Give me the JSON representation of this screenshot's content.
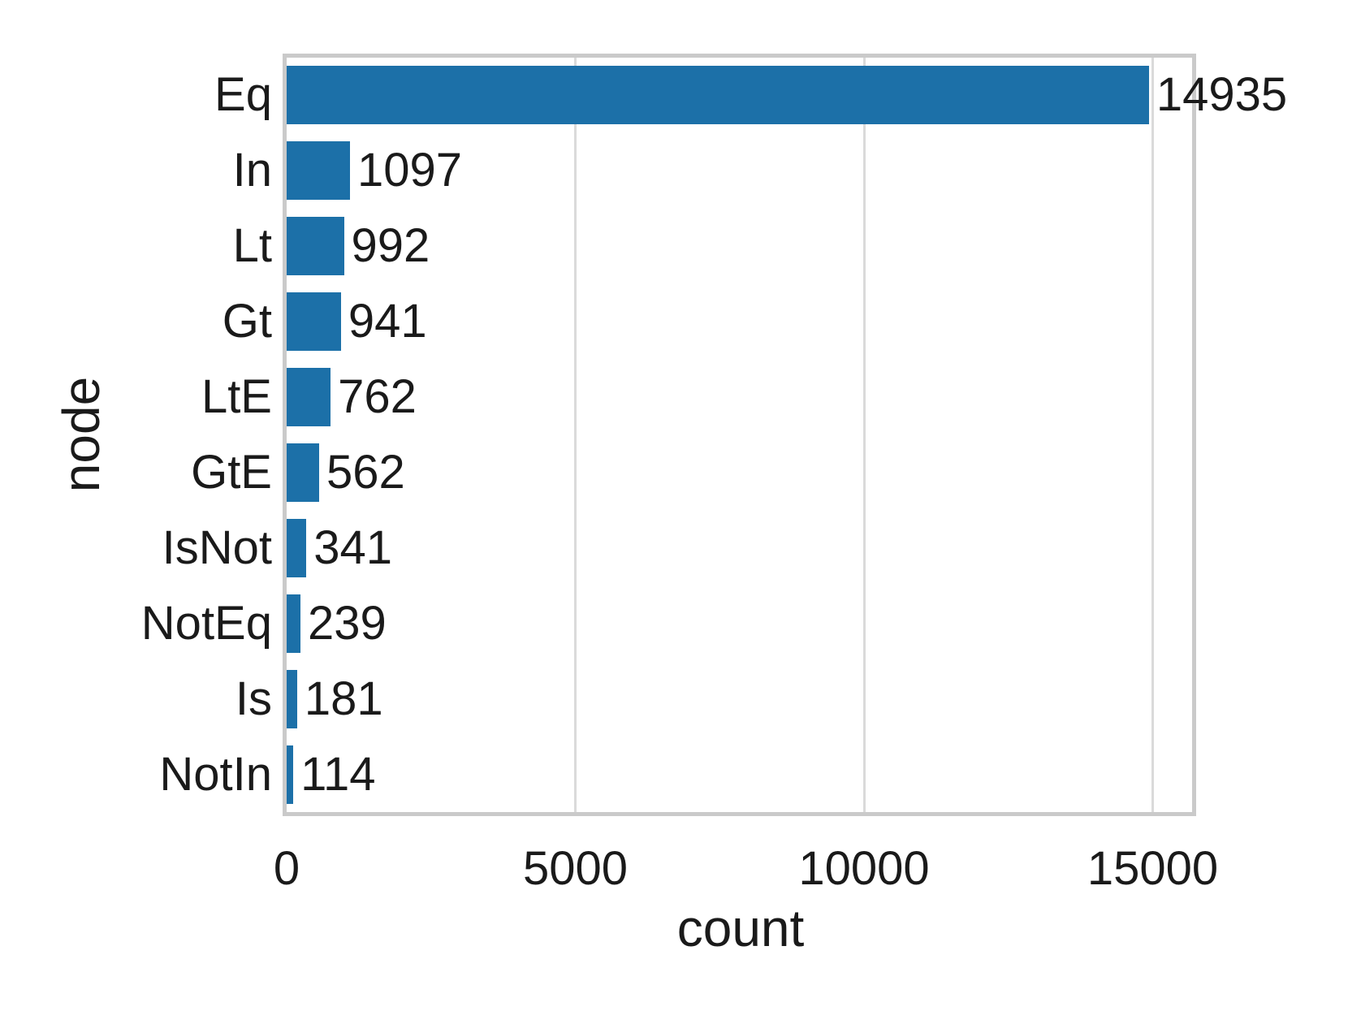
{
  "chart_data": {
    "type": "bar",
    "orientation": "horizontal",
    "title": "",
    "xlabel": "count",
    "ylabel": "node",
    "categories": [
      "Eq",
      "In",
      "Lt",
      "Gt",
      "LtE",
      "GtE",
      "IsNot",
      "NotEq",
      "Is",
      "NotIn"
    ],
    "values": [
      14935,
      1097,
      992,
      941,
      762,
      562,
      341,
      239,
      181,
      114
    ],
    "xticks": [
      0,
      5000,
      10000,
      15000
    ],
    "xtick_labels": [
      "0",
      "5000",
      "10000",
      "15000"
    ],
    "xlim": [
      0,
      15682
    ],
    "grid": "vertical gridlines only",
    "legend": "none",
    "bar_value_labels_shown": true,
    "colors": {
      "bar": "#1c70a8",
      "grid": "#dadada",
      "frame": "#cacaca",
      "text": "#1a1a1a",
      "background": "#ffffff"
    }
  }
}
